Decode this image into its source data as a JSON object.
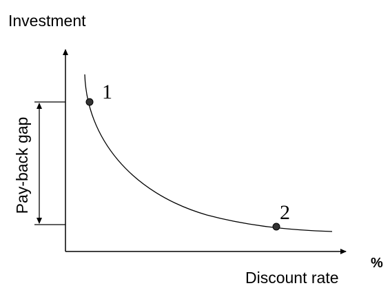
{
  "y_axis_label": "Investment",
  "x_axis_label": "Discount rate",
  "x_axis_unit": "%",
  "gap_label": "Pay-back gap",
  "points": [
    {
      "label": "1"
    },
    {
      "label": "2"
    }
  ]
}
